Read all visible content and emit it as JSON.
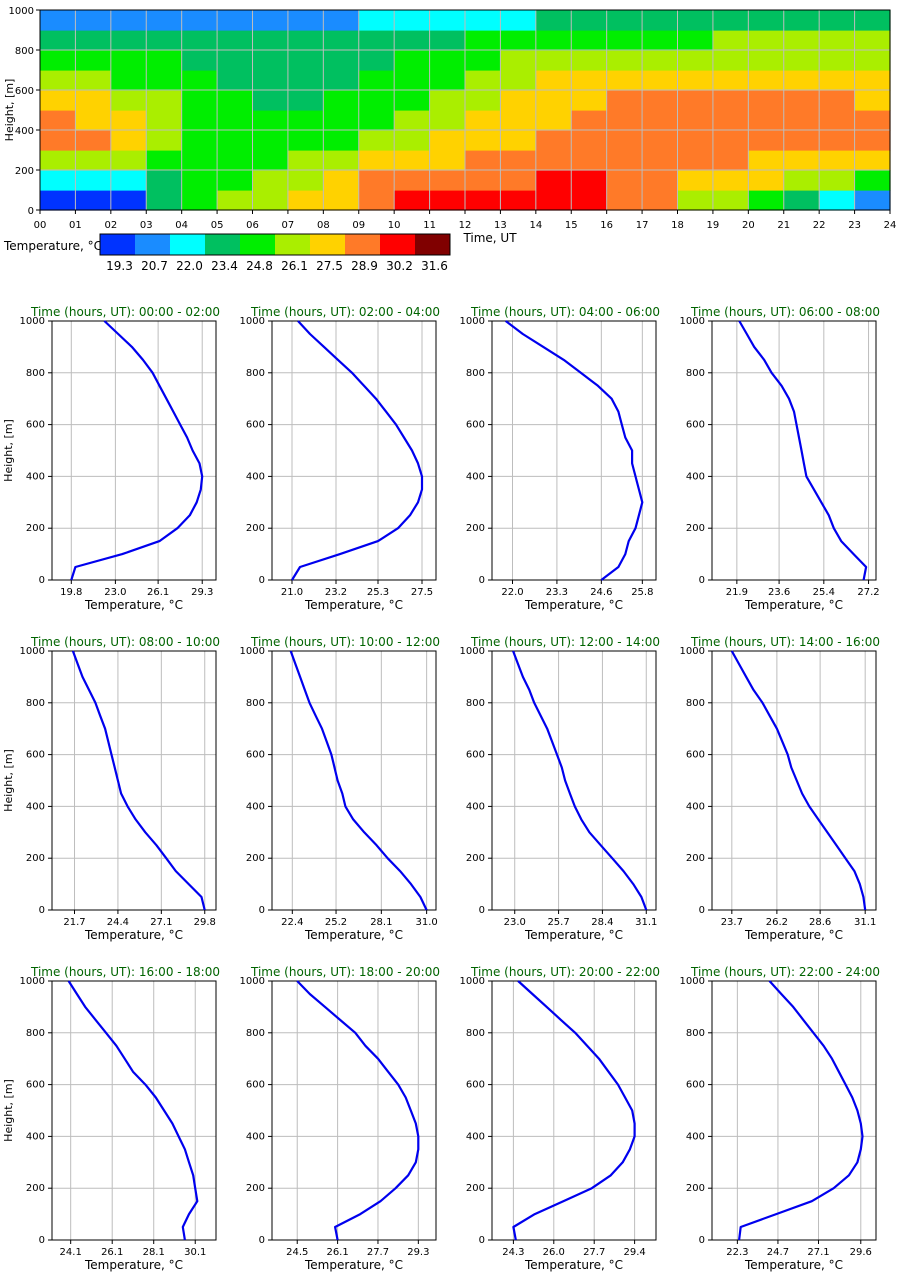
{
  "heatmap": {
    "title": "",
    "ylabel": "Height, [m]",
    "xlabel": "Time, UT",
    "y_ticks": [
      "0",
      "200",
      "400",
      "600",
      "800",
      "1000"
    ],
    "x_ticks": [
      "00",
      "01",
      "02",
      "03",
      "04",
      "05",
      "06",
      "07",
      "08",
      "09",
      "10",
      "11",
      "12",
      "13",
      "14",
      "15",
      "16",
      "17",
      "18",
      "19",
      "20",
      "21",
      "22",
      "23",
      "24"
    ],
    "x_range": [
      0,
      24
    ],
    "y_range": [
      0,
      1000
    ],
    "legend_title": "Temperature, °C",
    "legend_labels": [
      "19.3",
      "20.7",
      "22.0",
      "23.4",
      "24.8",
      "26.1",
      "27.5",
      "28.9",
      "30.2",
      "31.6"
    ],
    "legend_colors": [
      "#0033ff",
      "#1a8cff",
      "#00ffff",
      "#00c060",
      "#00ee00",
      "#aaee00",
      "#ffd200",
      "#ff7a28",
      "#ff0000",
      "#800000"
    ]
  },
  "profiles": {
    "ylabel": "Height, [m]",
    "xlabel": "Temperature, °C",
    "title_prefix": "Time (hours, UT): ",
    "y_ticks": [
      "0",
      "200",
      "400",
      "600",
      "800",
      "1000"
    ]
  },
  "chart_data": [
    {
      "type": "heatmap",
      "x_field": "Time, UT",
      "y_field": "Height, [m]",
      "value_field": "Temperature, °C",
      "x": [
        0,
        1,
        2,
        3,
        4,
        5,
        6,
        7,
        8,
        9,
        10,
        11,
        12,
        13,
        14,
        15,
        16,
        17,
        18,
        19,
        20,
        21,
        22,
        23
      ],
      "y": [
        0,
        100,
        200,
        300,
        400,
        500,
        600,
        700,
        800,
        900
      ],
      "values": [
        [
          19.5,
          19.5,
          20.5,
          24.0,
          25.0,
          26.5,
          27.0,
          27.5,
          28.5,
          30.0,
          30.5,
          30.5,
          30.5,
          30.5,
          30.5,
          30.5,
          30.0,
          29.0,
          27.0,
          26.5,
          26.0,
          24.5,
          22.5,
          21.0
        ],
        [
          22.0,
          22.0,
          23.0,
          24.5,
          25.0,
          25.5,
          26.5,
          27.0,
          28.0,
          29.0,
          29.5,
          30.0,
          30.0,
          30.0,
          30.5,
          30.5,
          30.0,
          29.5,
          28.5,
          28.0,
          27.5,
          27.0,
          26.5,
          26.0
        ],
        [
          27.0,
          27.0,
          26.5,
          26.0,
          25.5,
          25.5,
          26.0,
          26.5,
          27.0,
          27.5,
          28.0,
          28.5,
          29.0,
          29.5,
          29.5,
          30.0,
          30.0,
          29.5,
          29.0,
          29.0,
          28.5,
          28.5,
          28.0,
          27.5
        ],
        [
          29.0,
          29.0,
          27.5,
          26.5,
          26.0,
          25.5,
          25.5,
          25.5,
          26.0,
          26.5,
          27.0,
          27.5,
          28.0,
          28.5,
          29.0,
          29.0,
          29.0,
          29.0,
          29.0,
          29.0,
          29.0,
          29.0,
          29.0,
          29.0
        ],
        [
          29.0,
          28.5,
          27.5,
          26.5,
          26.0,
          25.5,
          25.0,
          25.0,
          25.5,
          26.0,
          26.5,
          27.0,
          27.5,
          28.0,
          28.5,
          29.0,
          29.0,
          29.0,
          29.0,
          29.0,
          29.0,
          29.0,
          29.0,
          29.0
        ],
        [
          27.5,
          27.5,
          27.0,
          26.5,
          25.5,
          25.0,
          24.5,
          24.5,
          25.0,
          25.5,
          26.0,
          26.5,
          27.0,
          27.5,
          28.0,
          28.0,
          29.0,
          29.0,
          29.0,
          29.0,
          29.0,
          29.0,
          29.0,
          28.5
        ],
        [
          26.5,
          26.5,
          26.0,
          26.0,
          25.0,
          24.5,
          24.5,
          24.5,
          24.5,
          25.0,
          25.5,
          26.0,
          26.5,
          27.0,
          27.5,
          27.5,
          28.0,
          27.5,
          27.5,
          27.5,
          27.5,
          27.5,
          27.5,
          27.5
        ],
        [
          25.5,
          25.5,
          25.0,
          25.0,
          24.5,
          24.0,
          24.0,
          24.0,
          24.0,
          24.5,
          25.0,
          25.5,
          26.0,
          26.5,
          26.5,
          27.0,
          27.0,
          27.0,
          27.0,
          27.0,
          27.0,
          27.0,
          27.0,
          27.0
        ],
        [
          23.5,
          23.5,
          23.5,
          24.0,
          24.0,
          23.5,
          23.5,
          23.5,
          23.5,
          24.0,
          24.0,
          24.5,
          25.0,
          25.5,
          25.5,
          26.0,
          26.0,
          26.0,
          26.0,
          26.5,
          26.5,
          26.5,
          26.5,
          26.5
        ],
        [
          21.5,
          21.5,
          21.5,
          21.5,
          21.5,
          21.5,
          21.5,
          21.5,
          21.5,
          22.0,
          22.0,
          22.5,
          22.5,
          23.0,
          23.5,
          24.0,
          24.0,
          24.0,
          24.0,
          24.0,
          24.0,
          24.0,
          24.0,
          24.0
        ]
      ],
      "color_scale": [
        19.3,
        20.7,
        22.0,
        23.4,
        24.8,
        26.1,
        27.5,
        28.9,
        30.2,
        31.6
      ]
    },
    {
      "type": "line",
      "title": "00:00 - 02:00",
      "x_ticks": [
        "19.8",
        "23.0",
        "26.1",
        "29.3"
      ],
      "xlim": [
        18.4,
        30.3
      ],
      "y": [
        0,
        50,
        100,
        150,
        200,
        250,
        300,
        350,
        400,
        450,
        500,
        550,
        600,
        650,
        700,
        750,
        800,
        850,
        900,
        950,
        1000
      ],
      "x": [
        19.8,
        20.1,
        23.5,
        26.2,
        27.5,
        28.4,
        28.9,
        29.2,
        29.3,
        29.1,
        28.6,
        28.2,
        27.7,
        27.2,
        26.7,
        26.2,
        25.7,
        25.0,
        24.2,
        23.2,
        22.2
      ]
    },
    {
      "type": "line",
      "title": "02:00 - 04:00",
      "x_ticks": [
        "21.0",
        "23.2",
        "25.3",
        "27.5"
      ],
      "xlim": [
        20.0,
        28.2
      ],
      "y": [
        0,
        50,
        100,
        150,
        200,
        250,
        300,
        350,
        400,
        450,
        500,
        550,
        600,
        650,
        700,
        750,
        800,
        850,
        900,
        950,
        1000
      ],
      "x": [
        21.0,
        21.4,
        23.4,
        25.3,
        26.3,
        26.9,
        27.3,
        27.5,
        27.5,
        27.3,
        27.0,
        26.6,
        26.2,
        25.7,
        25.2,
        24.6,
        24.0,
        23.3,
        22.6,
        21.9,
        21.3
      ]
    },
    {
      "type": "line",
      "title": "04:00 - 06:00",
      "x_ticks": [
        "22.0",
        "23.3",
        "24.6",
        "25.8"
      ],
      "xlim": [
        21.4,
        26.2
      ],
      "y": [
        0,
        50,
        100,
        150,
        200,
        250,
        300,
        350,
        400,
        450,
        500,
        550,
        600,
        650,
        700,
        750,
        800,
        850,
        900,
        950,
        1000
      ],
      "x": [
        24.6,
        25.1,
        25.3,
        25.4,
        25.6,
        25.7,
        25.8,
        25.7,
        25.6,
        25.5,
        25.5,
        25.3,
        25.2,
        25.1,
        24.9,
        24.5,
        24.0,
        23.5,
        22.9,
        22.3,
        21.8
      ]
    },
    {
      "type": "line",
      "title": "06:00 - 08:00",
      "x_ticks": [
        "21.9",
        "23.6",
        "25.4",
        "27.2"
      ],
      "xlim": [
        20.9,
        27.5
      ],
      "y": [
        0,
        50,
        100,
        150,
        200,
        250,
        300,
        350,
        400,
        450,
        500,
        550,
        600,
        650,
        700,
        750,
        800,
        850,
        900,
        950,
        1000
      ],
      "x": [
        27.0,
        27.1,
        26.6,
        26.1,
        25.8,
        25.6,
        25.3,
        25.0,
        24.7,
        24.6,
        24.5,
        24.4,
        24.3,
        24.2,
        24.0,
        23.7,
        23.3,
        23.0,
        22.6,
        22.3,
        22.0
      ]
    },
    {
      "type": "line",
      "title": "08:00 - 10:00",
      "x_ticks": [
        "21.7",
        "24.4",
        "27.1",
        "29.8"
      ],
      "xlim": [
        20.3,
        30.5
      ],
      "y": [
        0,
        50,
        100,
        150,
        200,
        250,
        300,
        350,
        400,
        450,
        500,
        550,
        600,
        650,
        700,
        750,
        800,
        850,
        900,
        950,
        1000
      ],
      "x": [
        29.8,
        29.6,
        28.8,
        28.0,
        27.4,
        26.8,
        26.1,
        25.5,
        25.0,
        24.6,
        24.4,
        24.2,
        24.0,
        23.8,
        23.6,
        23.3,
        23.0,
        22.6,
        22.2,
        21.9,
        21.6
      ]
    },
    {
      "type": "line",
      "title": "10:00 - 12:00",
      "x_ticks": [
        "22.4",
        "25.2",
        "28.1",
        "31.0"
      ],
      "xlim": [
        21.1,
        31.6
      ],
      "y": [
        0,
        50,
        100,
        150,
        200,
        250,
        300,
        350,
        400,
        450,
        500,
        550,
        600,
        650,
        700,
        750,
        800,
        850,
        900,
        950,
        1000
      ],
      "x": [
        31.0,
        30.6,
        30.0,
        29.3,
        28.5,
        27.8,
        27.0,
        26.3,
        25.8,
        25.6,
        25.3,
        25.1,
        24.9,
        24.6,
        24.3,
        23.9,
        23.5,
        23.2,
        22.9,
        22.6,
        22.3
      ]
    },
    {
      "type": "line",
      "title": "12:00 - 14:00",
      "x_ticks": [
        "23.0",
        "25.7",
        "28.4",
        "31.1"
      ],
      "xlim": [
        21.6,
        31.7
      ],
      "y": [
        0,
        50,
        100,
        150,
        200,
        250,
        300,
        350,
        400,
        450,
        500,
        550,
        600,
        650,
        700,
        750,
        800,
        850,
        900,
        950,
        1000
      ],
      "x": [
        31.1,
        30.8,
        30.3,
        29.7,
        29.0,
        28.3,
        27.6,
        27.1,
        26.7,
        26.4,
        26.1,
        25.9,
        25.6,
        25.3,
        25.0,
        24.6,
        24.2,
        23.9,
        23.5,
        23.2,
        22.9
      ]
    },
    {
      "type": "line",
      "title": "14:00 - 16:00",
      "x_ticks": [
        "23.7",
        "26.2",
        "28.6",
        "31.1"
      ],
      "xlim": [
        22.6,
        31.7
      ],
      "y": [
        0,
        50,
        100,
        150,
        200,
        250,
        300,
        350,
        400,
        450,
        500,
        550,
        600,
        650,
        700,
        750,
        800,
        850,
        900,
        950,
        1000
      ],
      "x": [
        31.1,
        31.0,
        30.8,
        30.5,
        30.0,
        29.5,
        29.0,
        28.5,
        28.0,
        27.6,
        27.3,
        27.0,
        26.8,
        26.5,
        26.2,
        25.8,
        25.4,
        24.9,
        24.5,
        24.1,
        23.7
      ]
    },
    {
      "type": "line",
      "title": "16:00 - 18:00",
      "x_ticks": [
        "24.1",
        "26.1",
        "28.1",
        "30.1"
      ],
      "xlim": [
        23.2,
        31.1
      ],
      "y": [
        0,
        50,
        100,
        150,
        200,
        250,
        300,
        350,
        400,
        450,
        500,
        550,
        600,
        650,
        700,
        750,
        800,
        850,
        900,
        950,
        1000
      ],
      "x": [
        29.6,
        29.5,
        29.8,
        30.2,
        30.1,
        30.0,
        29.8,
        29.6,
        29.3,
        29.0,
        28.6,
        28.2,
        27.7,
        27.1,
        26.7,
        26.3,
        25.8,
        25.3,
        24.8,
        24.4,
        24.0
      ]
    },
    {
      "type": "line",
      "title": "18:00 - 20:00",
      "x_ticks": [
        "24.5",
        "26.1",
        "27.7",
        "29.3"
      ],
      "xlim": [
        23.5,
        30.0
      ],
      "y": [
        0,
        50,
        100,
        150,
        200,
        250,
        300,
        350,
        400,
        450,
        500,
        550,
        600,
        650,
        700,
        750,
        800,
        850,
        900,
        950,
        1000
      ],
      "x": [
        26.1,
        26.0,
        27.0,
        27.8,
        28.4,
        28.9,
        29.2,
        29.3,
        29.3,
        29.2,
        29.0,
        28.8,
        28.5,
        28.1,
        27.7,
        27.2,
        26.8,
        26.2,
        25.6,
        25.0,
        24.5
      ]
    },
    {
      "type": "line",
      "title": "20:00 - 22:00",
      "x_ticks": [
        "24.3",
        "26.0",
        "27.7",
        "29.4"
      ],
      "xlim": [
        23.4,
        30.3
      ],
      "y": [
        0,
        50,
        100,
        150,
        200,
        250,
        300,
        350,
        400,
        450,
        500,
        550,
        600,
        650,
        700,
        750,
        800,
        850,
        900,
        950,
        1000
      ],
      "x": [
        24.4,
        24.3,
        25.2,
        26.4,
        27.6,
        28.4,
        28.9,
        29.2,
        29.4,
        29.4,
        29.3,
        29.0,
        28.7,
        28.3,
        27.9,
        27.4,
        26.9,
        26.3,
        25.7,
        25.1,
        24.5
      ]
    },
    {
      "type": "line",
      "title": "22:00 - 24:00",
      "x_ticks": [
        "22.3",
        "24.7",
        "27.1",
        "29.6"
      ],
      "xlim": [
        20.8,
        30.5
      ],
      "y": [
        0,
        50,
        100,
        150,
        200,
        250,
        300,
        350,
        400,
        450,
        500,
        550,
        600,
        650,
        700,
        750,
        800,
        850,
        900,
        950,
        1000
      ],
      "x": [
        22.4,
        22.5,
        24.6,
        26.7,
        28.0,
        28.9,
        29.4,
        29.6,
        29.7,
        29.6,
        29.4,
        29.1,
        28.7,
        28.3,
        27.9,
        27.4,
        26.8,
        26.2,
        25.6,
        24.9,
        24.2
      ]
    }
  ]
}
